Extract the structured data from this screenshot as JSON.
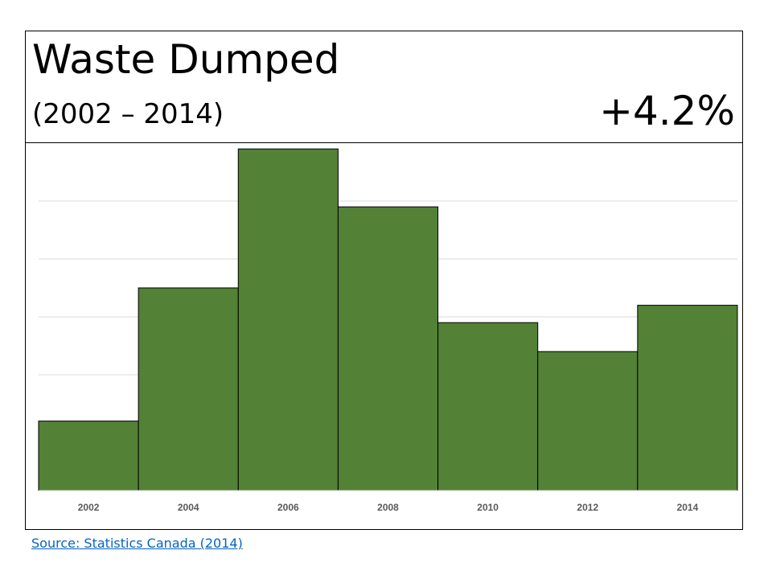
{
  "slide": {
    "title": "Waste Dumped",
    "subtitle": "(2002 – 2014)",
    "change": "+4.2%",
    "source_link": "Source: Statistics Canada (2014)"
  },
  "chart_data": {
    "type": "bar",
    "categories": [
      "2002",
      "2004",
      "2006",
      "2008",
      "2010",
      "2012",
      "2014"
    ],
    "values": [
      1.2,
      3.5,
      5.9,
      4.9,
      2.9,
      2.4,
      3.2
    ],
    "ylim": [
      0,
      6
    ],
    "grid": true,
    "y_tick_labels": false,
    "colors": {
      "bar": "#538135",
      "bar_edge": "#000000",
      "grid": "#d9d9d9",
      "tick_label": "#595959"
    }
  }
}
